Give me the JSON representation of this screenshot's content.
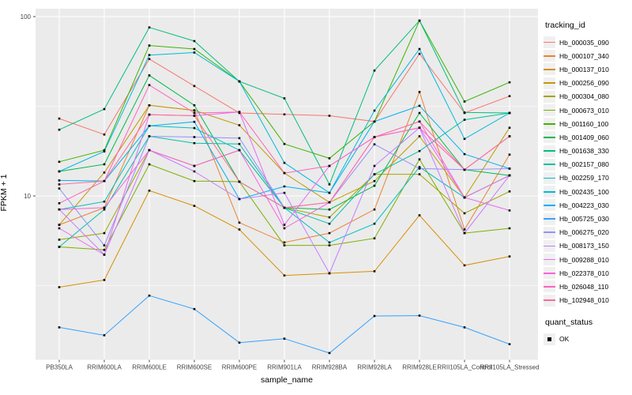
{
  "chart_data": {
    "type": "line",
    "title": "",
    "xlabel": "sample_name",
    "ylabel": "FPKM + 1",
    "y_scale": "log10",
    "y_ticks": [
      10,
      100
    ],
    "y_minor_gridlines": [
      3.162,
      31.62
    ],
    "ylim": [
      1.2,
      110
    ],
    "grid": "on",
    "legend_position": "right",
    "panel_color": "#EBEBEB",
    "gridline_color": "#FFFFFF",
    "point_color": "#000000",
    "categories": [
      "PB350LA",
      "RRIM600LA",
      "RRIM600LE",
      "RRIM600SE",
      "RRIM600PE",
      "RRIM901LA",
      "RRIM928BA",
      "RRIM928LA",
      "RRIM928LE",
      "RRII105LA_Control",
      "RRII105LA_Stressed"
    ],
    "series": [
      {
        "name": "Hb_000035_090",
        "color": "#F8766D",
        "values": [
          27,
          22,
          58,
          41,
          29,
          28.5,
          28,
          26,
          62,
          29,
          36
        ]
      },
      {
        "name": "Hb_000107_340",
        "color": "#EA8331",
        "values": [
          6.9,
          8.6,
          32,
          30,
          7.1,
          5.5,
          6.2,
          8.4,
          38,
          6.5,
          17
        ]
      },
      {
        "name": "Hb_000137_010",
        "color": "#D89000",
        "values": [
          3.1,
          3.4,
          10.7,
          8.8,
          6.5,
          3.6,
          3.7,
          3.8,
          7.8,
          4.1,
          4.6
        ]
      },
      {
        "name": "Hb_000256_090",
        "color": "#C09B00",
        "values": [
          6.9,
          13.5,
          32,
          30,
          24.8,
          13.4,
          9.2,
          12.1,
          21.5,
          9.8,
          24
        ]
      },
      {
        "name": "Hb_000304_080",
        "color": "#A3A500",
        "values": [
          5.7,
          6.2,
          18,
          14.7,
          18,
          8.6,
          7.6,
          13.2,
          13.2,
          8,
          10.6
        ]
      },
      {
        "name": "Hb_000673_010",
        "color": "#7CAE00",
        "values": [
          5.2,
          5,
          15,
          12.1,
          12,
          5.3,
          5.3,
          5.8,
          16,
          6.2,
          6.6
        ]
      },
      {
        "name": "Hb_001160_100",
        "color": "#39B600",
        "values": [
          15.5,
          18,
          69,
          66,
          43.5,
          19.5,
          16.2,
          26,
          95,
          33.6,
          43
        ]
      },
      {
        "name": "Hb_001409_060",
        "color": "#00BB4E",
        "values": [
          13.7,
          15,
          47,
          32,
          12,
          8.6,
          8.4,
          11.4,
          29,
          14,
          13
        ]
      },
      {
        "name": "Hb_001638_330",
        "color": "#00BF7D",
        "values": [
          23.4,
          30.5,
          87,
          73,
          43.5,
          35,
          11.6,
          50,
          95,
          29.2,
          29
        ]
      },
      {
        "name": "Hb_002157_080",
        "color": "#00C1A3",
        "values": [
          5.2,
          8.4,
          21.5,
          19.7,
          19.5,
          8.6,
          7,
          13.2,
          17.8,
          26.6,
          29
        ]
      },
      {
        "name": "Hb_002259_170",
        "color": "#00BFC4",
        "values": [
          8.4,
          9.3,
          24.6,
          23.9,
          18,
          8.6,
          5.5,
          7,
          14.5,
          9.8,
          13
        ]
      },
      {
        "name": "Hb_002435_100",
        "color": "#00BAE0",
        "values": [
          13.7,
          17.7,
          61,
          63,
          43.5,
          15.3,
          10.4,
          29.9,
          66,
          20.8,
          29
        ]
      },
      {
        "name": "Hb_004223_030",
        "color": "#00B0F6",
        "values": [
          12.2,
          12.1,
          24.6,
          25.9,
          9.6,
          11.3,
          10.4,
          26,
          31.8,
          17.1,
          14.2
        ]
      },
      {
        "name": "Hb_005725_030",
        "color": "#35A2FF",
        "values": [
          1.85,
          1.67,
          2.78,
          2.34,
          1.52,
          1.6,
          1.33,
          2.14,
          2.15,
          1.85,
          1.49
        ]
      },
      {
        "name": "Hb_006275_020",
        "color": "#9590FF",
        "values": [
          11,
          5.3,
          21.5,
          21.3,
          21,
          8.6,
          9.2,
          19.4,
          14.2,
          14,
          14.2
        ]
      },
      {
        "name": "Hb_008173_150",
        "color": "#C77CFF",
        "values": [
          8.4,
          4.7,
          18,
          13.7,
          9.6,
          10.4,
          3.7,
          14.7,
          24,
          6.2,
          13
        ]
      },
      {
        "name": "Hb_009288_010",
        "color": "#E76BF3",
        "values": [
          6.6,
          4.7,
          28.4,
          28,
          29.4,
          6.9,
          14.7,
          21.3,
          24,
          9.8,
          8.3
        ]
      },
      {
        "name": "Hb_022378_010",
        "color": "#FA62DB",
        "values": [
          8.4,
          8.6,
          18,
          14.7,
          18,
          6.6,
          9.2,
          21.3,
          26,
          9.8,
          13
        ]
      },
      {
        "name": "Hb_026048_110",
        "color": "#FF62BC",
        "values": [
          9.1,
          12.1,
          41.5,
          29,
          29.4,
          13.4,
          14.7,
          21.3,
          24,
          14,
          21.5
        ]
      },
      {
        "name": "Hb_102948_010",
        "color": "#FF6A98",
        "values": [
          11.6,
          12.1,
          28.4,
          28,
          12,
          8.6,
          9.2,
          21.3,
          26,
          14,
          21.5
        ]
      }
    ],
    "legend_tracking": {
      "title": "tracking_id"
    },
    "legend_quant": {
      "title": "quant_status",
      "items": [
        {
          "label": "OK",
          "glyph": "black-square-point"
        }
      ]
    }
  },
  "axes": {
    "y_title": "FPKM + 1",
    "x_title": "sample_name"
  }
}
